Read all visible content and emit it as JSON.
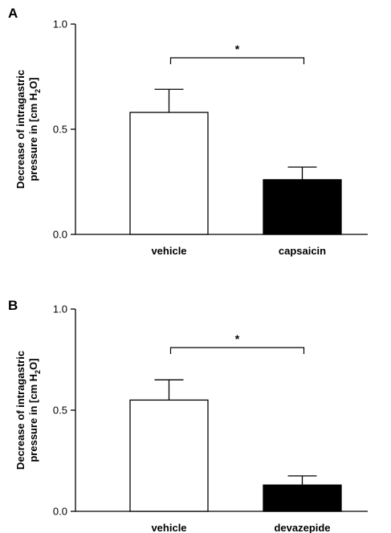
{
  "chart_data": [
    {
      "type": "bar",
      "panel_label": "A",
      "categories": [
        "vehicle",
        "capsaicin"
      ],
      "values": [
        0.58,
        0.26
      ],
      "errors": [
        0.11,
        0.06
      ],
      "bar_colors": [
        "#ffffff",
        "#000000"
      ],
      "ylim": [
        0,
        1.0
      ],
      "yticks": [
        "0.0",
        "0.5",
        "1.0"
      ],
      "ylabel_line1": "Decrease of intragastric",
      "ylabel_line2_pre": "pressure in [cm H",
      "ylabel_sub": "2",
      "ylabel_line2_post": "O]",
      "significance": "*",
      "grid": false
    },
    {
      "type": "bar",
      "panel_label": "B",
      "categories": [
        "vehicle",
        "devazepide"
      ],
      "values": [
        0.55,
        0.13
      ],
      "errors": [
        0.1,
        0.045
      ],
      "bar_colors": [
        "#ffffff",
        "#000000"
      ],
      "ylim": [
        0,
        1.0
      ],
      "yticks": [
        "0.0",
        "0.5",
        "1.0"
      ],
      "ylabel_line1": "Decrease of intragastric",
      "ylabel_line2_pre": "pressure in [cm H",
      "ylabel_sub": "2",
      "ylabel_line2_post": "O]",
      "significance": "*",
      "grid": false
    }
  ]
}
